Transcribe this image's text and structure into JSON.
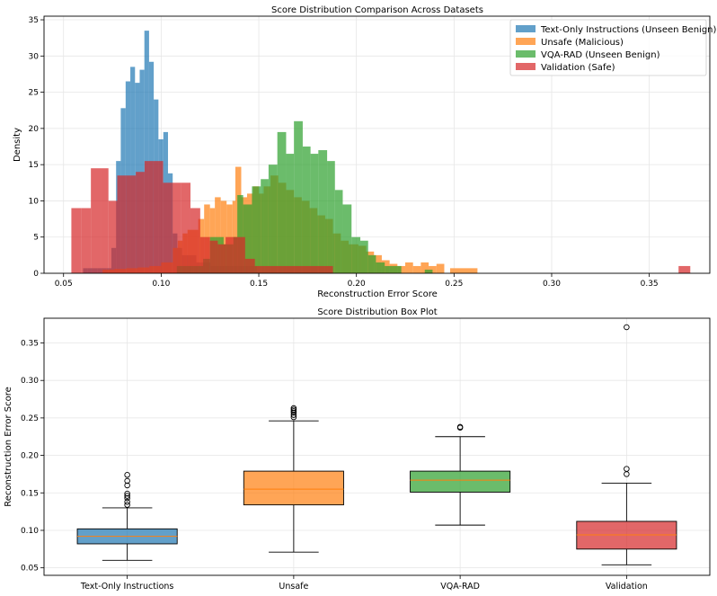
{
  "chart_data": [
    {
      "type": "histogram",
      "title": "Score Distribution Comparison Across Datasets",
      "xlabel": "Reconstruction Error Score",
      "ylabel": "Density",
      "xlim": [
        0.04,
        0.381
      ],
      "ylim": [
        0,
        35.5
      ],
      "xticks": [
        0.05,
        0.1,
        0.15,
        0.2,
        0.25,
        0.3,
        0.35
      ],
      "xtick_labels": [
        "0.05",
        "0.10",
        "0.15",
        "0.20",
        "0.25",
        "0.30",
        "0.35"
      ],
      "yticks": [
        0,
        5,
        10,
        15,
        20,
        25,
        30,
        35
      ],
      "ytick_labels": [
        "0",
        "5",
        "10",
        "15",
        "20",
        "25",
        "30",
        "35"
      ],
      "grid": true,
      "legend_position": "top-right",
      "series": [
        {
          "name": "Text-Only Instructions (Unseen Benign)",
          "color": "#1f77b4",
          "bins": [
            [
              0.06,
              0.0624,
              0.7
            ],
            [
              0.0624,
              0.0649,
              0.7
            ],
            [
              0.0649,
              0.0673,
              0.7
            ],
            [
              0.0673,
              0.0697,
              0.7
            ],
            [
              0.0697,
              0.0721,
              0.7
            ],
            [
              0.0721,
              0.0745,
              0.7
            ],
            [
              0.0745,
              0.0769,
              3.5
            ],
            [
              0.0769,
              0.0793,
              15.5
            ],
            [
              0.0793,
              0.0818,
              22.8
            ],
            [
              0.0818,
              0.0842,
              26.5
            ],
            [
              0.0842,
              0.0866,
              28.5
            ],
            [
              0.0866,
              0.089,
              26.3
            ],
            [
              0.089,
              0.0914,
              28.1
            ],
            [
              0.0914,
              0.0938,
              33.5
            ],
            [
              0.0938,
              0.0962,
              29.2
            ],
            [
              0.0962,
              0.0986,
              24.0
            ],
            [
              0.0986,
              0.1011,
              18.5
            ],
            [
              0.1011,
              0.1035,
              19.5
            ],
            [
              0.1035,
              0.1059,
              13.8
            ],
            [
              0.1059,
              0.1083,
              5.5
            ],
            [
              0.1083,
              0.1107,
              3.5
            ],
            [
              0.1107,
              0.1131,
              2.5
            ],
            [
              0.1131,
              0.1155,
              2.5
            ],
            [
              0.1155,
              0.118,
              2.5
            ],
            [
              0.118,
              0.1204,
              1.5
            ],
            [
              0.1204,
              0.1228,
              1.5
            ],
            [
              0.1228,
              0.1252,
              1.5
            ],
            [
              0.1252,
              0.1276,
              1.0
            ],
            [
              0.1276,
              0.13,
              1.0
            ],
            [
              0.13,
              0.1324,
              1.0
            ],
            [
              0.1324,
              0.1349,
              1.0
            ],
            [
              0.1349,
              0.1373,
              1.0
            ],
            [
              0.1373,
              0.1397,
              1.0
            ],
            [
              0.1397,
              0.1421,
              1.0
            ],
            [
              0.1421,
              0.1445,
              1.0
            ],
            [
              0.1445,
              0.149,
              1.0
            ]
          ]
        },
        {
          "name": "Unsafe (Malicious)",
          "color": "#ff7f0e",
          "bins": [
            [
              0.07,
              0.076,
              0.5
            ],
            [
              0.076,
              0.082,
              0.6
            ],
            [
              0.082,
              0.088,
              0.7
            ],
            [
              0.088,
              0.094,
              0.8
            ],
            [
              0.094,
              0.1,
              1.0
            ],
            [
              0.1,
              0.106,
              1.5
            ],
            [
              0.106,
              0.1085,
              3.5
            ],
            [
              0.1085,
              0.111,
              4.5
            ],
            [
              0.111,
              0.1135,
              5.5
            ],
            [
              0.1135,
              0.119,
              6.0
            ],
            [
              0.119,
              0.122,
              7.5
            ],
            [
              0.122,
              0.125,
              9.5
            ],
            [
              0.125,
              0.1275,
              9.0
            ],
            [
              0.1275,
              0.1305,
              10.5
            ],
            [
              0.1305,
              0.1335,
              10.0
            ],
            [
              0.1335,
              0.1365,
              9.5
            ],
            [
              0.1365,
              0.138,
              10.0
            ],
            [
              0.138,
              0.141,
              14.7
            ],
            [
              0.141,
              0.144,
              10.5
            ],
            [
              0.144,
              0.147,
              11.0
            ],
            [
              0.147,
              0.15,
              12.0
            ],
            [
              0.15,
              0.1525,
              11.0
            ],
            [
              0.1525,
              0.156,
              12.0
            ],
            [
              0.156,
              0.16,
              13.5
            ],
            [
              0.16,
              0.164,
              12.5
            ],
            [
              0.164,
              0.168,
              11.5
            ],
            [
              0.168,
              0.172,
              10.5
            ],
            [
              0.172,
              0.176,
              10.0
            ],
            [
              0.176,
              0.18,
              9.0
            ],
            [
              0.18,
              0.184,
              8.0
            ],
            [
              0.184,
              0.188,
              7.5
            ],
            [
              0.188,
              0.192,
              5.5
            ],
            [
              0.192,
              0.196,
              4.5
            ],
            [
              0.196,
              0.201,
              4.0
            ],
            [
              0.201,
              0.205,
              3.8
            ],
            [
              0.205,
              0.209,
              3.0
            ],
            [
              0.209,
              0.213,
              2.5
            ],
            [
              0.213,
              0.217,
              1.8
            ],
            [
              0.217,
              0.221,
              1.3
            ],
            [
              0.221,
              0.225,
              1.0
            ],
            [
              0.225,
              0.229,
              1.5
            ],
            [
              0.229,
              0.233,
              1.0
            ],
            [
              0.233,
              0.237,
              1.5
            ],
            [
              0.237,
              0.241,
              1.0
            ],
            [
              0.241,
              0.245,
              1.3
            ],
            [
              0.248,
              0.25,
              0.7
            ],
            [
              0.25,
              0.262,
              0.7
            ]
          ]
        },
        {
          "name": "VQA-RAD (Unseen Benign)",
          "color": "#2ca02c",
          "bins": [
            [
              0.108,
              0.112,
              1.0
            ],
            [
              0.112,
              0.1165,
              1.0
            ],
            [
              0.1165,
              0.1215,
              1.0
            ],
            [
              0.1215,
              0.125,
              2.0
            ],
            [
              0.125,
              0.129,
              5.0
            ],
            [
              0.129,
              0.132,
              5.0
            ],
            [
              0.132,
              0.137,
              4.0
            ],
            [
              0.137,
              0.139,
              5.0
            ],
            [
              0.139,
              0.142,
              10.8
            ],
            [
              0.142,
              0.1465,
              9.5
            ],
            [
              0.1465,
              0.151,
              12.0
            ],
            [
              0.151,
              0.155,
              13.0
            ],
            [
              0.155,
              0.1595,
              15.0
            ],
            [
              0.1595,
              0.164,
              19.5
            ],
            [
              0.164,
              0.168,
              16.5
            ],
            [
              0.168,
              0.1725,
              21.0
            ],
            [
              0.1725,
              0.1765,
              17.5
            ],
            [
              0.1765,
              0.1805,
              16.5
            ],
            [
              0.1805,
              0.185,
              17.0
            ],
            [
              0.185,
              0.189,
              15.5
            ],
            [
              0.189,
              0.193,
              11.5
            ],
            [
              0.193,
              0.1975,
              9.5
            ],
            [
              0.1975,
              0.202,
              5.0
            ],
            [
              0.202,
              0.206,
              4.5
            ],
            [
              0.206,
              0.21,
              2.5
            ],
            [
              0.21,
              0.2145,
              1.5
            ],
            [
              0.2145,
              0.219,
              1.0
            ],
            [
              0.219,
              0.223,
              1.0
            ],
            [
              0.235,
              0.239,
              0.5
            ]
          ]
        },
        {
          "name": "Validation (Safe)",
          "color": "#d62728",
          "bins": [
            [
              0.054,
              0.059,
              9.0
            ],
            [
              0.059,
              0.064,
              9.0
            ],
            [
              0.064,
              0.069,
              14.5
            ],
            [
              0.069,
              0.073,
              14.5
            ],
            [
              0.073,
              0.0775,
              10.0
            ],
            [
              0.0775,
              0.082,
              13.5
            ],
            [
              0.082,
              0.087,
              13.5
            ],
            [
              0.087,
              0.0915,
              14.0
            ],
            [
              0.0915,
              0.096,
              15.5
            ],
            [
              0.096,
              0.101,
              15.5
            ],
            [
              0.101,
              0.1055,
              12.5
            ],
            [
              0.1055,
              0.11,
              12.5
            ],
            [
              0.11,
              0.115,
              12.5
            ],
            [
              0.115,
              0.12,
              9.0
            ],
            [
              0.12,
              0.125,
              5.0
            ],
            [
              0.125,
              0.129,
              4.5
            ],
            [
              0.129,
              0.133,
              4.0
            ],
            [
              0.133,
              0.138,
              5.0
            ],
            [
              0.138,
              0.143,
              5.0
            ],
            [
              0.143,
              0.148,
              2.0
            ],
            [
              0.148,
              0.153,
              1.0
            ],
            [
              0.153,
              0.158,
              1.0
            ],
            [
              0.158,
              0.162,
              1.0
            ],
            [
              0.162,
              0.188,
              1.0
            ],
            [
              0.365,
              0.371,
              1.0
            ]
          ]
        }
      ]
    },
    {
      "type": "box",
      "title": "Score Distribution Box Plot",
      "xlabel": "",
      "ylabel": "Reconstruction Error Score",
      "ylim": [
        0.04,
        0.383
      ],
      "yticks": [
        0.05,
        0.1,
        0.15,
        0.2,
        0.25,
        0.3,
        0.35
      ],
      "ytick_labels": [
        "0.05",
        "0.10",
        "0.15",
        "0.20",
        "0.25",
        "0.30",
        "0.35"
      ],
      "grid": true,
      "categories": [
        "Text-Only Instructions",
        "Unsafe",
        "VQA-RAD",
        "Validation"
      ],
      "boxes": [
        {
          "name": "Text-Only Instructions",
          "color": "#1f77b4",
          "whisker_low": 0.06,
          "q1": 0.082,
          "median": 0.092,
          "q3": 0.102,
          "whisker_high": 0.13,
          "outliers": [
            0.134,
            0.138,
            0.143,
            0.146,
            0.149,
            0.16,
            0.166,
            0.174
          ]
        },
        {
          "name": "Unsafe",
          "color": "#ff7f0e",
          "whisker_low": 0.071,
          "q1": 0.134,
          "median": 0.155,
          "q3": 0.179,
          "whisker_high": 0.246,
          "outliers": [
            0.251,
            0.254,
            0.257,
            0.259,
            0.261,
            0.263
          ]
        },
        {
          "name": "VQA-RAD",
          "color": "#2ca02c",
          "whisker_low": 0.107,
          "q1": 0.151,
          "median": 0.167,
          "q3": 0.179,
          "whisker_high": 0.225,
          "outliers": [
            0.237,
            0.238
          ]
        },
        {
          "name": "Validation",
          "color": "#d62728",
          "whisker_low": 0.054,
          "q1": 0.075,
          "median": 0.094,
          "q3": 0.112,
          "whisker_high": 0.163,
          "outliers": [
            0.175,
            0.182,
            0.371
          ]
        }
      ]
    }
  ]
}
